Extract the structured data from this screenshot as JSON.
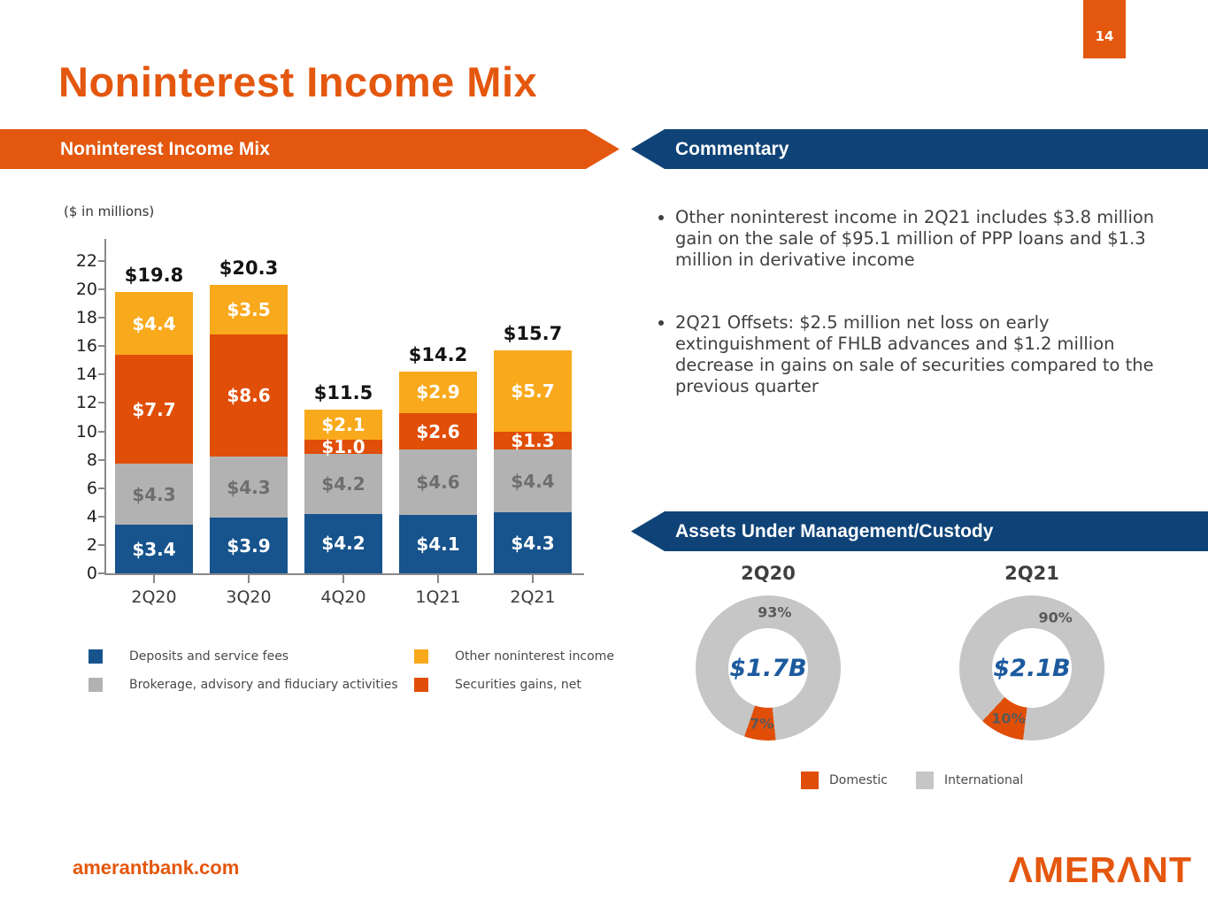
{
  "page": {
    "number": "14",
    "title": "Noninterest Income Mix",
    "footer_url": "amerantbank.com",
    "logo_text": "ΛMERΛNT"
  },
  "banners": {
    "left": "Noninterest Income Mix",
    "commentary": "Commentary",
    "aum": "Assets Under Management/Custody"
  },
  "commentary": {
    "bullets": [
      "Other noninterest income in 2Q21 includes $3.8 million gain on the sale of $95.1 million of PPP loans and $1.3 million in derivative income",
      "2Q21 Offsets: $2.5 million net loss on early extinguishment of FHLB advances and $1.2 million decrease in gains on sale of securities compared to the previous quarter"
    ]
  },
  "chart_data": [
    {
      "type": "bar",
      "stacked": true,
      "title": "Noninterest Income Mix",
      "units_note": "($ in millions)",
      "categories": [
        "2Q20",
        "3Q20",
        "4Q20",
        "1Q21",
        "2Q21"
      ],
      "series": [
        {
          "name": "Deposits and service fees",
          "color": "#17538C",
          "text_color": "#FFFFFF",
          "values": [
            3.4,
            3.9,
            4.2,
            4.1,
            4.3
          ]
        },
        {
          "name": "Brokerage, advisory and fiduciary activities",
          "color": "#B2B2B2",
          "text_color": "#6E6E6E",
          "values": [
            4.3,
            4.3,
            4.2,
            4.6,
            4.4
          ]
        },
        {
          "name": "Securities gains, net",
          "color": "#E04E08",
          "text_color": "#FFFFFF",
          "values": [
            7.7,
            8.6,
            1.0,
            2.6,
            1.3
          ]
        },
        {
          "name": "Other noninterest income",
          "color": "#F9A91C",
          "text_color": "#FFFFFF",
          "values": [
            4.4,
            3.5,
            2.1,
            2.9,
            5.7
          ]
        }
      ],
      "totals": [
        "$19.8",
        "$20.3",
        "$11.5",
        "$14.2",
        "$15.7"
      ],
      "ylim": [
        0,
        22
      ],
      "ytick_step": 2,
      "grid": false,
      "legend_order": [
        "Deposits and service fees",
        "Brokerage, advisory and fiduciary activities",
        "Other noninterest income",
        "Securities gains, net"
      ],
      "legend_position": "bottom"
    },
    {
      "type": "pie",
      "title": "2Q20",
      "center_label": "$1.7B",
      "slices": [
        {
          "label": "Domestic",
          "pct": 7,
          "color": "#E04E08"
        },
        {
          "label": "International",
          "pct": 93,
          "color": "#C6C6C6"
        }
      ],
      "domestic_start_deg": 174
    },
    {
      "type": "pie",
      "title": "2Q21",
      "center_label": "$2.1B",
      "slices": [
        {
          "label": "Domestic",
          "pct": 10,
          "color": "#E04E08"
        },
        {
          "label": "International",
          "pct": 90,
          "color": "#C6C6C6"
        }
      ],
      "domestic_start_deg": 187
    }
  ],
  "aum_legend": [
    {
      "label": "Domestic",
      "color": "#E04E08"
    },
    {
      "label": "International",
      "color": "#C6C6C6"
    }
  ]
}
